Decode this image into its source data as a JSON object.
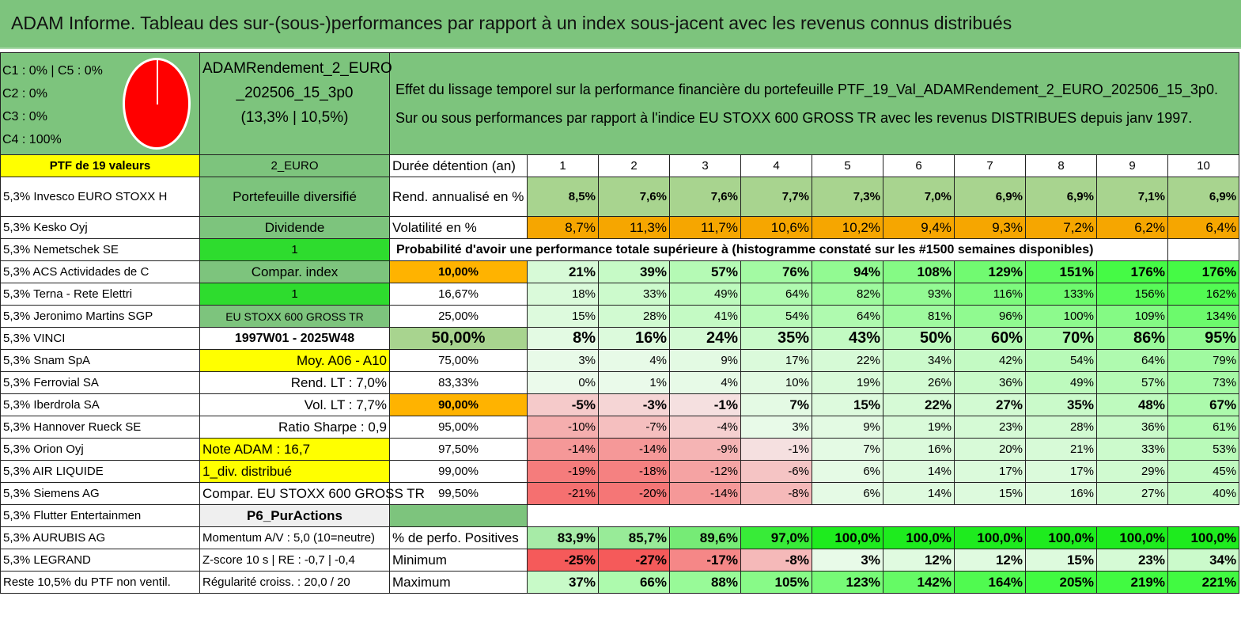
{
  "title": "ADAM Informe. Tableau des sur-(sous-)performances par rapport à un index sous-jacent avec les revenus connus distribués",
  "legend": {
    "lines": [
      "C1 : 0% | C5 : 0%",
      "C2 : 0%",
      "C3 : 0%",
      "C4 : 100%"
    ]
  },
  "portfolio_name": {
    "line1": "ADAMRendement_2_EURO",
    "line2": "_202506_15_3p0",
    "line3": "(13,3% | 10,5%)"
  },
  "description": {
    "line1": "Effet du lissage temporel sur la performance financière du portefeuille PTF_19_Val_ADAMRendement_2_EURO_202506_15_3p0.",
    "line2": "Sur ou sous performances par rapport à l'indice EU STOXX 600 GROSS TR avec les revenus DISTRIBUES depuis janv 1997."
  },
  "ptf_label": "PTF de 19 valeurs",
  "currency_label": "2_EURO",
  "holdings": [
    "5,3% Invesco EURO STOXX H",
    "5,3% Kesko Oyj",
    "5,3% Nemetschek SE",
    "5,3% ACS Actividades de C",
    "5,3% Terna - Rete Elettri",
    "5,3% Jeronimo Martins SGP",
    "5,3% VINCI",
    "5,3% Snam SpA",
    "5,3% Ferrovial SA",
    "5,3% Iberdrola SA",
    "5,3% Hannover Rueck SE",
    "5,3% Orion Oyj",
    "5,3% AIR LIQUIDE",
    "5,3% Siemens AG",
    "5,3% Flutter Entertainmen",
    "5,3% AURUBIS AG",
    "5,3% LEGRAND",
    "Reste 10,5% du PTF non ventil."
  ],
  "info": [
    "Portefeuille diversifié",
    "Dividende",
    "1",
    "Compar. index",
    "1",
    "EU STOXX 600 GROSS TR",
    "1997W01 - 2025W48",
    "Moy. A06 - A10",
    "Rend. LT : 7,0%",
    "Vol. LT : 7,7%",
    "Ratio Sharpe : 0,9",
    "Note ADAM : 16,7",
    "1_div. distribué",
    "Compar. EU STOXX 600 GROSS TR",
    "P6_PurActions",
    "Momentum A/V : 5,0 (10=neutre)",
    "Z-score 10 s | RE : -0,7 | -0,4",
    "Régularité croiss. : 20,0 / 20"
  ],
  "table": {
    "duration_label": "Durée détention (an)",
    "years": [
      "1",
      "2",
      "3",
      "4",
      "5",
      "6",
      "7",
      "8",
      "9",
      "10"
    ],
    "return_label": "Rend. annualisé en %",
    "returns": [
      "8,5%",
      "7,6%",
      "7,6%",
      "7,7%",
      "7,3%",
      "7,0%",
      "6,9%",
      "6,9%",
      "7,1%",
      "6,9%"
    ],
    "volatility_label": "Volatilité en %",
    "volatility": [
      "8,7%",
      "11,3%",
      "11,7%",
      "10,6%",
      "10,2%",
      "9,4%",
      "9,3%",
      "7,2%",
      "6,2%",
      "6,4%"
    ],
    "prob_title": "Probabilité d'avoir une performance totale supérieure à (histogramme constaté sur les #1500 semaines disponibles)",
    "prob_rows": [
      {
        "label": "10,00%",
        "values": [
          "21%",
          "39%",
          "57%",
          "76%",
          "94%",
          "108%",
          "129%",
          "151%",
          "176%",
          "176%"
        ]
      },
      {
        "label": "16,67%",
        "values": [
          "18%",
          "33%",
          "49%",
          "64%",
          "82%",
          "93%",
          "116%",
          "133%",
          "156%",
          "162%"
        ]
      },
      {
        "label": "25,00%",
        "values": [
          "15%",
          "28%",
          "41%",
          "54%",
          "64%",
          "81%",
          "96%",
          "100%",
          "109%",
          "134%"
        ]
      },
      {
        "label": "50,00%",
        "values": [
          "8%",
          "16%",
          "24%",
          "35%",
          "43%",
          "50%",
          "60%",
          "70%",
          "86%",
          "95%"
        ]
      },
      {
        "label": "75,00%",
        "values": [
          "3%",
          "4%",
          "9%",
          "17%",
          "22%",
          "34%",
          "42%",
          "54%",
          "64%",
          "79%"
        ]
      },
      {
        "label": "83,33%",
        "values": [
          "0%",
          "1%",
          "4%",
          "10%",
          "19%",
          "26%",
          "36%",
          "49%",
          "57%",
          "73%"
        ]
      },
      {
        "label": "90,00%",
        "values": [
          "-5%",
          "-3%",
          "-1%",
          "7%",
          "15%",
          "22%",
          "27%",
          "35%",
          "48%",
          "67%"
        ]
      },
      {
        "label": "95,00%",
        "values": [
          "-10%",
          "-7%",
          "-4%",
          "3%",
          "9%",
          "19%",
          "23%",
          "28%",
          "36%",
          "61%"
        ]
      },
      {
        "label": "97,50%",
        "values": [
          "-14%",
          "-14%",
          "-9%",
          "-1%",
          "7%",
          "16%",
          "20%",
          "21%",
          "33%",
          "53%"
        ]
      },
      {
        "label": "99,00%",
        "values": [
          "-19%",
          "-18%",
          "-12%",
          "-6%",
          "6%",
          "14%",
          "17%",
          "17%",
          "29%",
          "45%"
        ]
      },
      {
        "label": "99,50%",
        "values": [
          "-21%",
          "-20%",
          "-14%",
          "-8%",
          "6%",
          "14%",
          "15%",
          "16%",
          "27%",
          "40%"
        ]
      }
    ],
    "positive_label": "% de perfo. Positives",
    "positive": [
      "83,9%",
      "85,7%",
      "89,6%",
      "97,0%",
      "100,0%",
      "100,0%",
      "100,0%",
      "100,0%",
      "100,0%",
      "100,0%"
    ],
    "min_label": "Minimum",
    "min": [
      "-25%",
      "-27%",
      "-17%",
      "-8%",
      "3%",
      "12%",
      "12%",
      "15%",
      "23%",
      "34%"
    ],
    "max_label": "Maximum",
    "max": [
      "37%",
      "66%",
      "88%",
      "105%",
      "123%",
      "142%",
      "164%",
      "205%",
      "219%",
      "221%"
    ]
  },
  "colors": {
    "header_green": "#7dc47d",
    "highlight_yellow": "#ffff00",
    "alert_orange": "#ffb300",
    "bright_green": "#2edc2e",
    "label_red": "#d40000"
  }
}
